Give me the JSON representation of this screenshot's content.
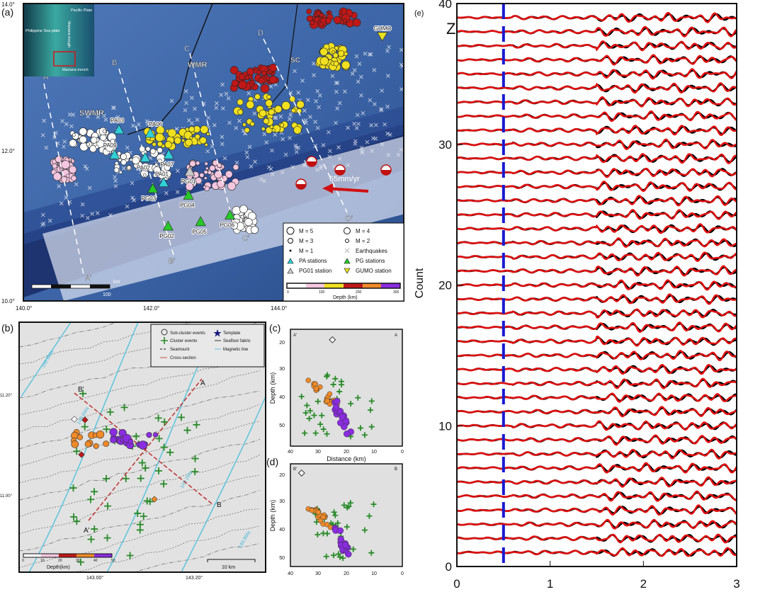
{
  "panel_a": {
    "label": "(a)",
    "lat_ticks": [
      "14.0°",
      "12.0°",
      "10.0°"
    ],
    "lon_ticks": [
      "140.0°",
      "142.0°",
      "144.0°"
    ],
    "inset_labels": [
      "Pacific Plate",
      "Philippine Sea plate",
      "Mariana trough",
      "Mariana trench"
    ],
    "feature_labels": {
      "swmr": "SWMR",
      "wmr": "WMR",
      "sc": "SC",
      "rate": "65mm/yr"
    },
    "profiles": [
      {
        "start": "A",
        "end": "A'"
      },
      {
        "start": "B",
        "end": "B'"
      },
      {
        "start": "C",
        "end": "C'"
      },
      {
        "start": "D",
        "end": "D'"
      }
    ],
    "stations": [
      {
        "name": "PA03",
        "type": "PA",
        "lon": 141.5,
        "lat": 12.29
      },
      {
        "name": "PA06",
        "type": "PA",
        "lon": 141.99,
        "lat": 12.24
      },
      {
        "name": "PA09",
        "type": "PA",
        "lon": 141.43,
        "lat": 11.95
      },
      {
        "name": "PA02",
        "type": "PA",
        "lon": 141.91,
        "lat": 11.91
      },
      {
        "name": "PA07",
        "type": "PA",
        "lon": 142.28,
        "lat": 11.95
      },
      {
        "name": "PA01",
        "type": "PA",
        "lon": 142.2,
        "lat": 11.57
      },
      {
        "name": "PG01",
        "type": "PG01",
        "lon": 142.61,
        "lat": 11.72
      },
      {
        "name": "PG03",
        "type": "PG",
        "lon": 142.03,
        "lat": 11.49
      },
      {
        "name": "PG04",
        "type": "PG",
        "lon": 142.59,
        "lat": 11.4
      },
      {
        "name": "PG02",
        "type": "PG",
        "lon": 142.27,
        "lat": 10.98
      },
      {
        "name": "PG05",
        "type": "PG",
        "lon": 142.78,
        "lat": 11.04
      },
      {
        "name": "PG06",
        "type": "PG",
        "lon": 143.24,
        "lat": 11.13
      },
      {
        "name": "GUMO",
        "type": "GUMO",
        "lon": 145.63,
        "lat": 13.55
      }
    ],
    "scale_label": "km",
    "scale_value": "100",
    "legend": {
      "items": [
        "M = 5",
        "M = 4",
        "M = 3",
        "M = 2",
        "M = 1",
        "Earthquakes",
        "PA stations",
        "PG stations",
        "PG01 station",
        "GUMO station"
      ],
      "colorbar_ticks": [
        "0",
        "100",
        "200",
        "300"
      ],
      "colorbar_label": "Depth (km)"
    }
  },
  "panel_b": {
    "label": "(b)",
    "lat_ticks": [
      "11.20°",
      "11.00°"
    ],
    "lon_ticks": [
      "143.00°",
      "143.20°"
    ],
    "magnetic_labels": [
      "148.6Ma",
      "148.6Ma",
      "149.2Ma",
      "149.8Ma"
    ],
    "section_labels": {
      "a": "A",
      "a_prime": "A'",
      "b": "B",
      "b_prime": "B'"
    },
    "legend": [
      "Sub-cluster events",
      "Template",
      "Cluster events",
      "Seafloor fabric",
      "Seamount",
      "Magnetic line",
      "Cross-section"
    ],
    "colorbar_ticks": [
      "0",
      "10",
      "20",
      "30",
      "40",
      "50"
    ],
    "colorbar_label": "Depth(km)",
    "scale_label": "10 km"
  },
  "panel_c": {
    "label": "(c)",
    "left_label": "A'",
    "right_label": "A",
    "xlabel": "Distance (km)",
    "ylabel": "Depth (km)",
    "x_ticks": [
      "40",
      "30",
      "20",
      "10",
      "0"
    ],
    "y_ticks": [
      "20",
      "30",
      "40",
      "50"
    ]
  },
  "panel_d": {
    "label": "(d)",
    "left_label": "B'",
    "right_label": "B",
    "ylabel": "Depth (km)",
    "x_ticks": [
      "40",
      "30",
      "20",
      "10",
      "0"
    ],
    "y_ticks": [
      "20",
      "30",
      "40",
      "50"
    ]
  },
  "chart_data": {
    "type": "line",
    "label": "(e)",
    "component": "Z",
    "ylabel": "Count",
    "x_ticks": [
      "0",
      "1",
      "2",
      "3"
    ],
    "y_ticks": [
      "0",
      "10",
      "20",
      "30",
      "40"
    ],
    "xlim": [
      0,
      3
    ],
    "ylim": [
      0,
      40
    ],
    "trace_count": 39,
    "pick_time": 0.5,
    "series_colors": {
      "observed": "#000000",
      "template": "#e01010",
      "pick": "#1a1ad0"
    }
  },
  "colors": {
    "depth_scale": [
      "#ffffff",
      "#f4c6e0",
      "#f0e020",
      "#c01818",
      "#f08a28",
      "#8a2ce0"
    ]
  }
}
